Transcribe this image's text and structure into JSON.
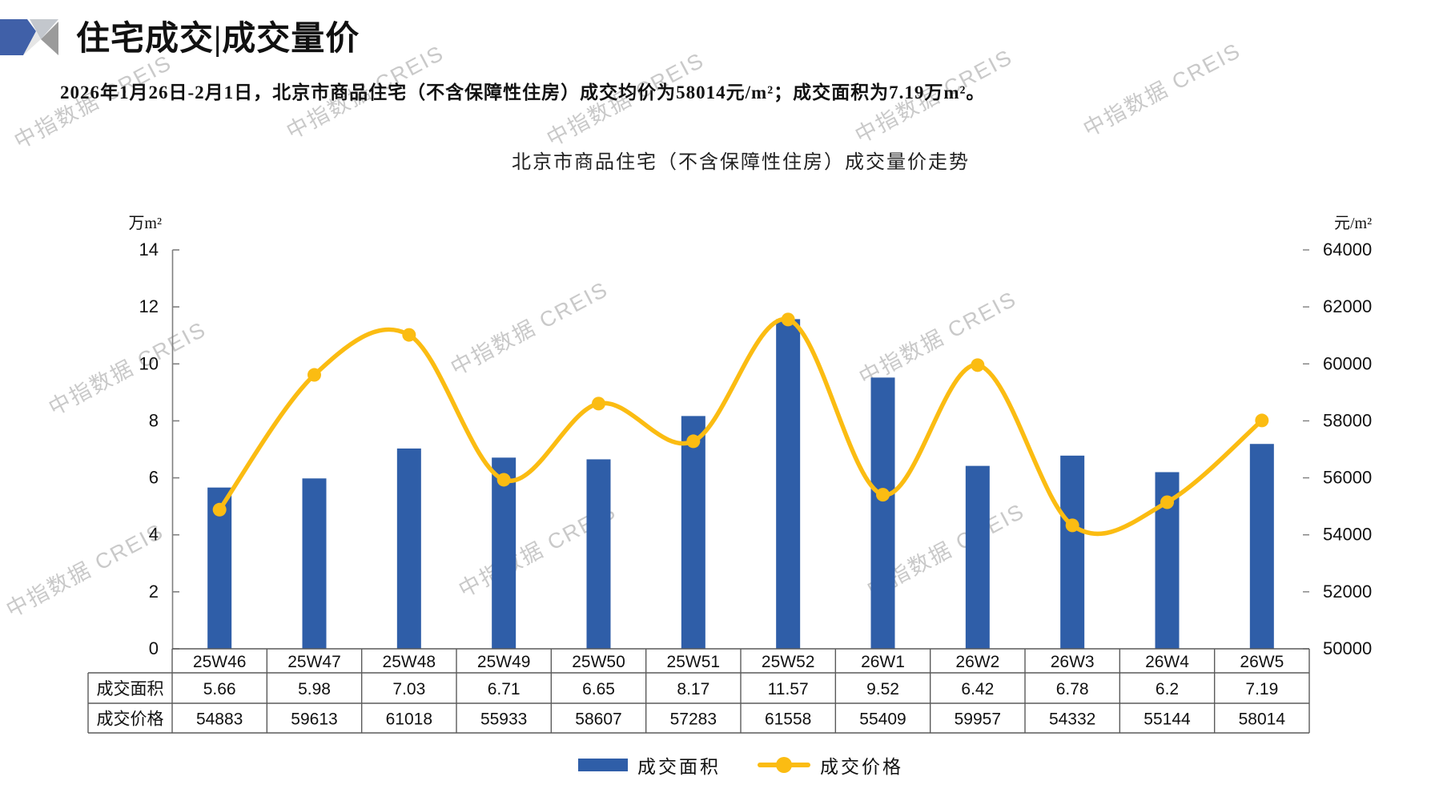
{
  "header": {
    "title": "住宅成交|成交量价"
  },
  "subtitle": "2026年1月26日-2月1日，北京市商品住宅（不含保障性住房）成交均价为58014元/m²；成交面积为7.19万m²。",
  "watermark": {
    "text": "中指数据 CREIS"
  },
  "chart_data": {
    "type": "bar+line",
    "title": "北京市商品住宅（不含保障性住房）成交量价走势",
    "categories": [
      "25W46",
      "25W47",
      "25W48",
      "25W49",
      "25W50",
      "25W51",
      "25W52",
      "26W1",
      "26W2",
      "26W3",
      "26W4",
      "26W5"
    ],
    "series": [
      {
        "name": "成交面积",
        "type": "bar",
        "axis": "left",
        "unit": "万m²",
        "color": "#2F5EA8",
        "values": [
          5.66,
          5.98,
          7.03,
          6.71,
          6.65,
          8.17,
          11.57,
          9.52,
          6.42,
          6.78,
          6.2,
          7.19
        ]
      },
      {
        "name": "成交价格",
        "type": "line",
        "axis": "right",
        "unit": "元/m²",
        "color": "#FBBC12",
        "values": [
          54883,
          59613,
          61018,
          55933,
          58607,
          57283,
          61558,
          55409,
          59957,
          54332,
          55144,
          58014
        ]
      }
    ],
    "y_axis_left": {
      "unit": "万m²",
      "min": 0,
      "max": 14,
      "ticks": [
        0,
        2,
        4,
        6,
        8,
        10,
        12,
        14
      ]
    },
    "y_axis_right": {
      "unit": "元/m²",
      "min": 50000,
      "max": 64000,
      "ticks": [
        50000,
        52000,
        54000,
        56000,
        58000,
        60000,
        62000,
        64000
      ]
    },
    "grid": false,
    "legend_position": "bottom"
  },
  "table": {
    "row_headers": [
      "成交面积",
      "成交价格"
    ]
  },
  "legend": {
    "items": [
      {
        "label": "成交面积",
        "color": "#2F5EA8",
        "marker": "bar"
      },
      {
        "label": "成交价格",
        "color": "#FBBC12",
        "marker": "line-dot"
      }
    ]
  },
  "colors": {
    "bar": "#2F5EA8",
    "line": "#FBBC12",
    "table_border": "#5a5a5a",
    "axis": "#7f7f7f"
  }
}
